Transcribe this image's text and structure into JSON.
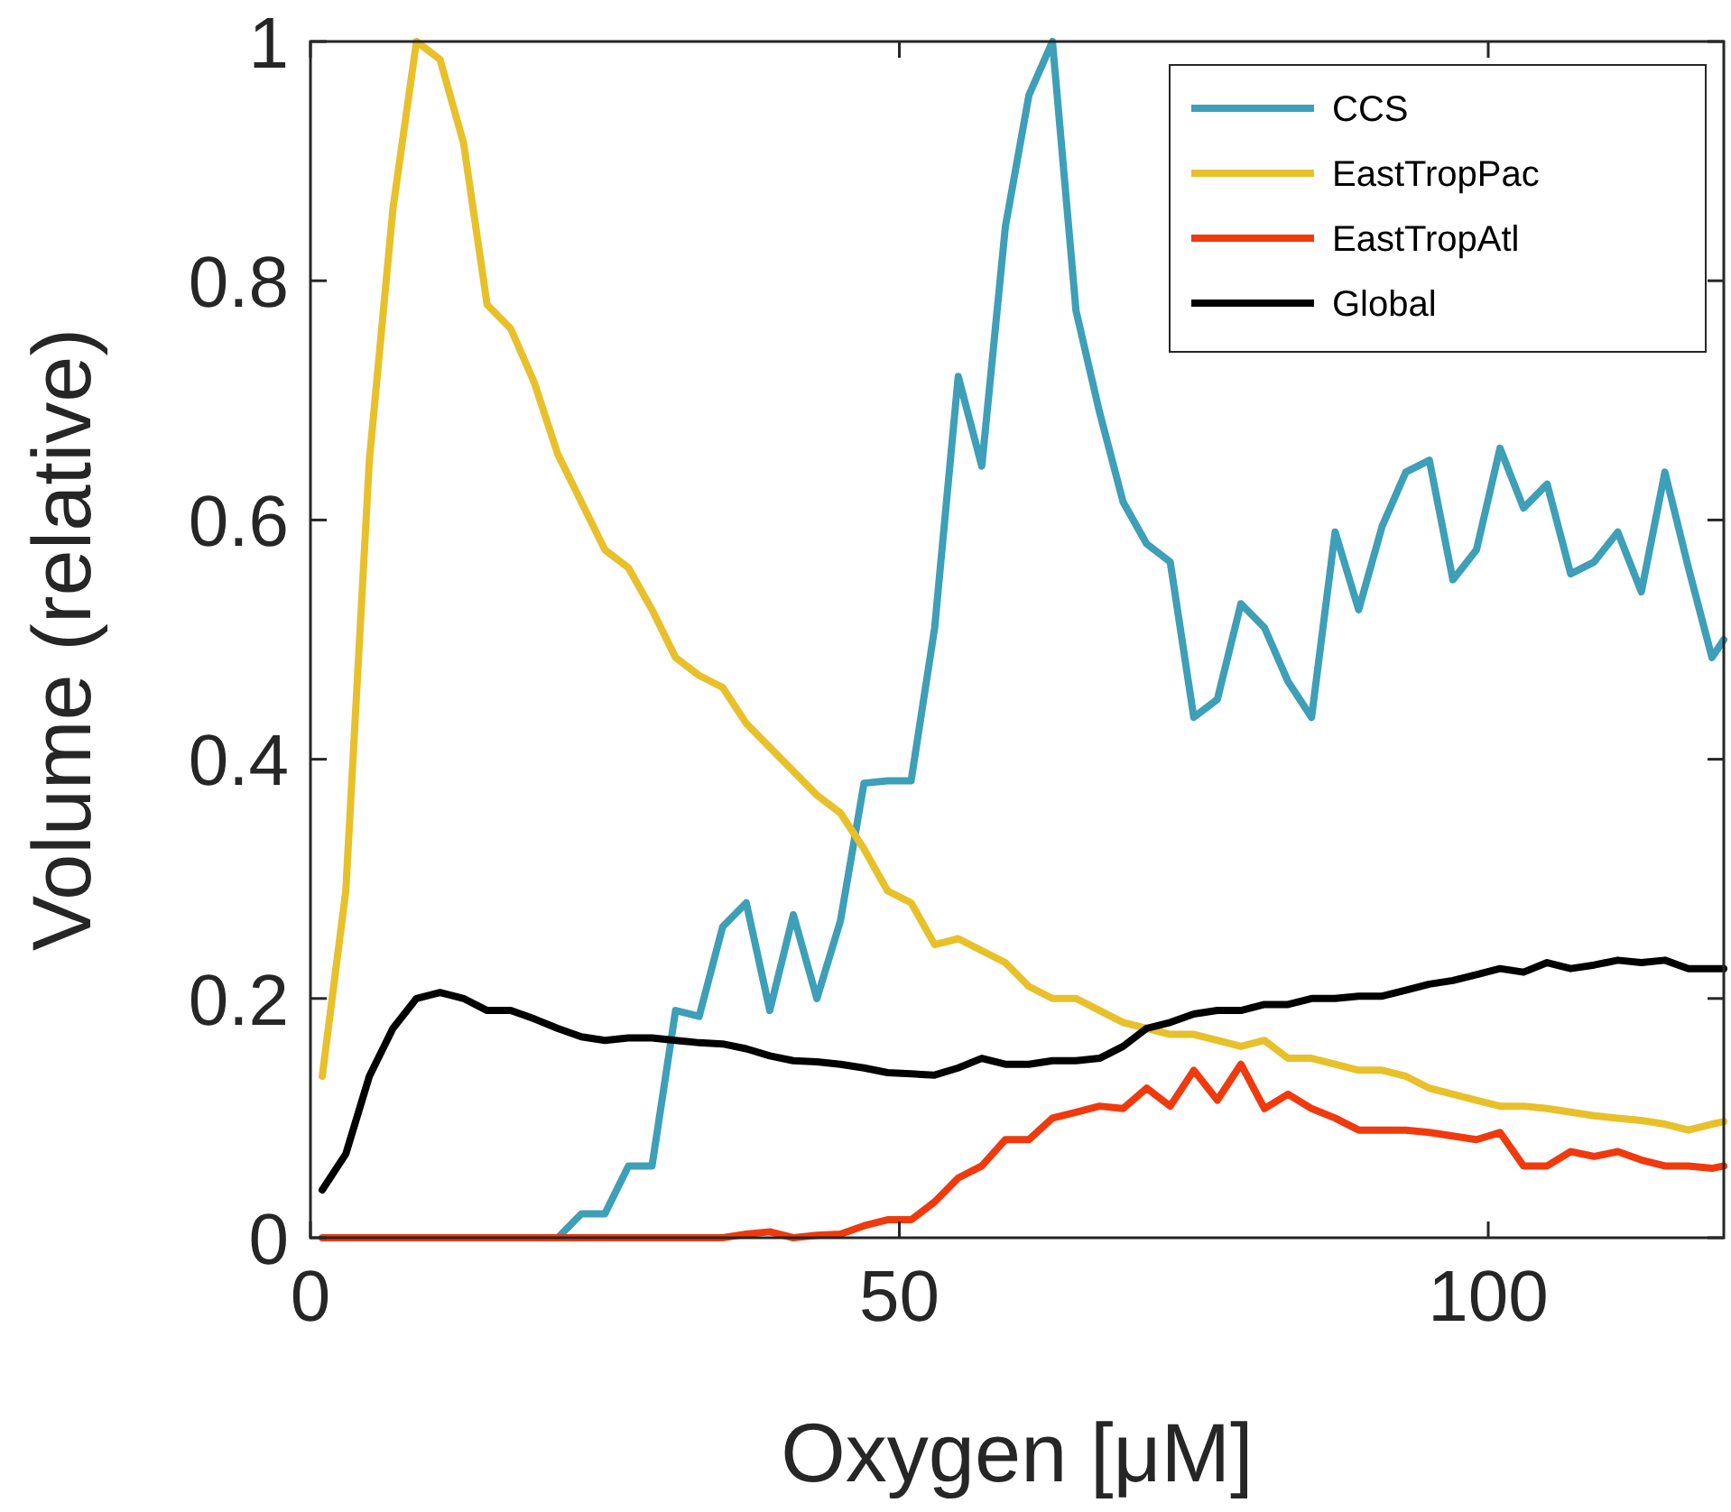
{
  "chart_data": {
    "type": "line",
    "xlabel": "Oxygen [μM]",
    "ylabel": "Volume (relative)",
    "xlim": [
      0,
      120
    ],
    "ylim": [
      0,
      1
    ],
    "xticks": [
      0,
      50,
      100
    ],
    "yticks": [
      0,
      0.2,
      0.4,
      0.6,
      0.8,
      1
    ],
    "grid": false,
    "legend": "top right",
    "line_style": "solid",
    "marker": "none",
    "x": [
      1,
      3,
      5,
      7,
      9,
      11,
      13,
      15,
      17,
      19,
      21,
      23,
      25,
      27,
      29,
      31,
      33,
      35,
      37,
      39,
      41,
      43,
      45,
      47,
      49,
      51,
      53,
      55,
      57,
      59,
      61,
      63,
      65,
      67,
      69,
      71,
      73,
      75,
      77,
      79,
      81,
      83,
      85,
      87,
      89,
      91,
      93,
      95,
      97,
      99,
      101,
      103,
      105,
      107,
      109,
      111,
      113,
      115,
      117,
      119,
      120
    ],
    "series": [
      {
        "name": "CCS",
        "color": "#3d9fb8",
        "values": [
          null,
          null,
          null,
          null,
          null,
          null,
          null,
          null,
          null,
          null,
          0,
          0.02,
          0.02,
          0.06,
          0.06,
          0.19,
          0.185,
          0.26,
          0.28,
          0.19,
          0.27,
          0.2,
          0.265,
          0.38,
          0.382,
          0.382,
          0.51,
          0.72,
          0.645,
          0.845,
          0.955,
          1.0,
          0.775,
          0.69,
          0.615,
          0.58,
          0.565,
          0.435,
          0.45,
          0.53,
          0.51,
          0.465,
          0.435,
          0.59,
          0.525,
          0.595,
          0.64,
          0.65,
          0.55,
          0.575,
          0.66,
          0.61,
          0.63,
          0.555,
          0.565,
          0.59,
          0.54,
          0.64,
          0.56,
          0.485,
          0.5
        ]
      },
      {
        "name": "EastTropPac",
        "color": "#e8c02a",
        "values": [
          0.135,
          0.29,
          0.65,
          0.86,
          1.0,
          0.985,
          0.915,
          0.78,
          0.76,
          0.715,
          0.655,
          0.615,
          0.575,
          0.56,
          0.525,
          0.485,
          0.47,
          0.46,
          0.43,
          0.41,
          0.39,
          0.37,
          0.355,
          0.325,
          0.29,
          0.28,
          0.245,
          0.25,
          0.24,
          0.23,
          0.21,
          0.2,
          0.2,
          0.19,
          0.18,
          0.175,
          0.17,
          0.17,
          0.165,
          0.16,
          0.165,
          0.15,
          0.15,
          0.145,
          0.14,
          0.14,
          0.135,
          0.125,
          0.12,
          0.115,
          0.11,
          0.11,
          0.108,
          0.105,
          0.102,
          0.1,
          0.098,
          0.095,
          0.09,
          0.095,
          0.097
        ]
      },
      {
        "name": "EastTropAtl",
        "color": "#f03a0e",
        "values": [
          0,
          0,
          0,
          0,
          0,
          0,
          0,
          0,
          0,
          0,
          0,
          0,
          0,
          0,
          0,
          0,
          0,
          0,
          0.003,
          0.005,
          0,
          0.002,
          0.003,
          0.01,
          0.015,
          0.015,
          0.03,
          0.05,
          0.06,
          0.082,
          0.082,
          0.1,
          0.105,
          0.11,
          0.108,
          0.125,
          0.11,
          0.14,
          0.115,
          0.145,
          0.108,
          0.12,
          0.108,
          0.1,
          0.09,
          0.09,
          0.09,
          0.088,
          0.085,
          0.082,
          0.088,
          0.06,
          0.06,
          0.072,
          0.068,
          0.072,
          0.065,
          0.06,
          0.06,
          0.058,
          0.06
        ]
      },
      {
        "name": "Global",
        "color": "#000000",
        "values": [
          0.04,
          0.07,
          0.135,
          0.175,
          0.2,
          0.205,
          0.2,
          0.19,
          0.19,
          0.183,
          0.175,
          0.168,
          0.165,
          0.167,
          0.167,
          0.165,
          0.163,
          0.162,
          0.158,
          0.152,
          0.148,
          0.147,
          0.145,
          0.142,
          0.138,
          0.137,
          0.136,
          0.142,
          0.15,
          0.145,
          0.145,
          0.148,
          0.148,
          0.15,
          0.16,
          0.175,
          0.18,
          0.187,
          0.19,
          0.19,
          0.195,
          0.195,
          0.2,
          0.2,
          0.202,
          0.202,
          0.207,
          0.212,
          0.215,
          0.22,
          0.225,
          0.222,
          0.23,
          0.225,
          0.228,
          0.232,
          0.23,
          0.232,
          0.225,
          0.225,
          0.225
        ]
      }
    ]
  }
}
